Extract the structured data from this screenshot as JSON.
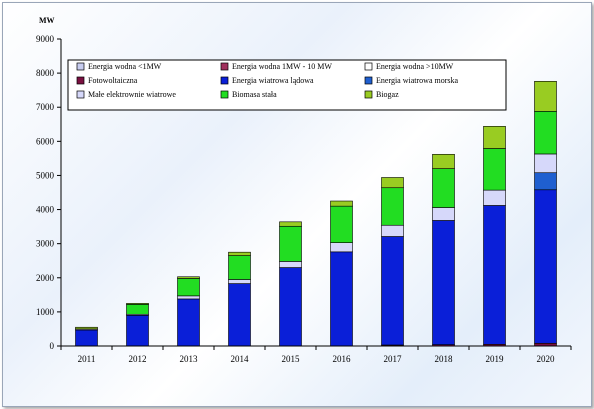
{
  "chart_data": {
    "type": "bar",
    "stacked": true,
    "ylabel": "MW",
    "ylim": [
      0,
      9000
    ],
    "yticks": [
      "0",
      "1000",
      "2000",
      "3000",
      "4000",
      "5000",
      "6000",
      "7000",
      "8000",
      "9000"
    ],
    "categories": [
      "2011",
      "2012",
      "2013",
      "2014",
      "2015",
      "2016",
      "2017",
      "2018",
      "2019",
      "2020"
    ],
    "legend_position": "top-left-inside",
    "series": [
      {
        "name": "Energia wodna <1MW",
        "color": "#c8cdf0",
        "values": [
          0,
          0,
          0,
          0,
          0,
          0,
          0,
          0,
          0,
          0
        ]
      },
      {
        "name": "Energia wodna 1MW - 10 MW",
        "color": "#a0305c",
        "values": [
          0,
          0,
          0,
          0,
          0,
          0,
          0,
          0,
          0,
          0
        ]
      },
      {
        "name": "Energia wodna >10MW",
        "color": "#ffffff",
        "values": [
          0,
          0,
          0,
          0,
          0,
          0,
          0,
          0,
          0,
          0
        ]
      },
      {
        "name": "Fotowoltaiczna",
        "color": "#7a1040",
        "values": [
          0,
          0,
          0,
          0,
          0,
          0,
          30,
          40,
          50,
          80
        ]
      },
      {
        "name": "Energia wiatrowa lądowa",
        "color": "#0a1fd8",
        "values": [
          470,
          900,
          1380,
          1830,
          2300,
          2760,
          3180,
          3640,
          4070,
          4500
        ]
      },
      {
        "name": "Energia wiatrowa morska",
        "color": "#1f5fd0",
        "values": [
          0,
          0,
          0,
          0,
          0,
          0,
          0,
          0,
          0,
          500
        ]
      },
      {
        "name": "Małe elektrownie wiatrowe",
        "color": "#d6d8fa",
        "values": [
          30,
          30,
          90,
          120,
          180,
          270,
          330,
          380,
          450,
          550
        ]
      },
      {
        "name": "Biomasa stała",
        "color": "#22dd22",
        "values": [
          0,
          290,
          510,
          700,
          1030,
          1070,
          1100,
          1140,
          1220,
          1250
        ]
      },
      {
        "name": "Biogaz",
        "color": "#99cc22",
        "values": [
          50,
          30,
          50,
          100,
          130,
          150,
          300,
          420,
          650,
          880
        ]
      }
    ]
  }
}
